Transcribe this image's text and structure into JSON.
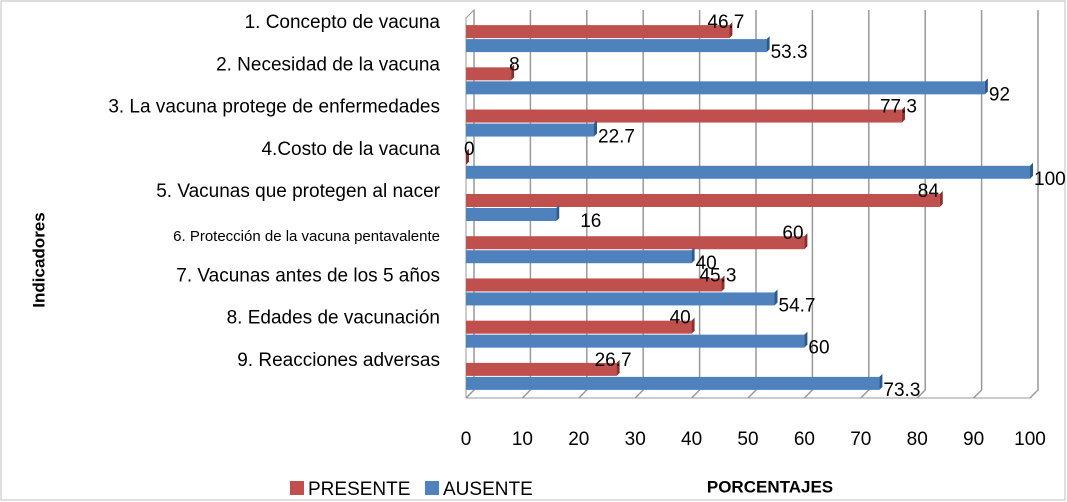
{
  "chart_data": {
    "type": "bar",
    "orientation": "horizontal",
    "xlabel": "PORCENTAJES",
    "ylabel": "Indicadores",
    "categories": [
      "1. Concepto de vacuna",
      "2. Necesidad de la vacuna",
      "3. La vacuna protege de enfermedades",
      "4.Costo de la vacuna",
      "5. Vacunas que protegen al nacer",
      "6.  Protección  de la  vacuna pentavalente",
      "7. Vacunas antes de los 5 años",
      "8. Edades de vacunación",
      "9. Reacciones adversas"
    ],
    "series": [
      {
        "name": "PRESENTE",
        "color": "#c0504d",
        "values": [
          46.7,
          8,
          77.3,
          0,
          84,
          60,
          45.3,
          40,
          26.7
        ]
      },
      {
        "name": "AUSENTE",
        "color": "#4f81bd",
        "values": [
          53.3,
          92,
          22.7,
          100,
          16,
          40,
          54.7,
          60,
          73.3
        ]
      }
    ],
    "xlim": [
      0,
      100
    ],
    "xticks": [
      0,
      10,
      20,
      30,
      40,
      50,
      60,
      70,
      80,
      90,
      100
    ],
    "grid": true,
    "legend": "bottom-left"
  }
}
